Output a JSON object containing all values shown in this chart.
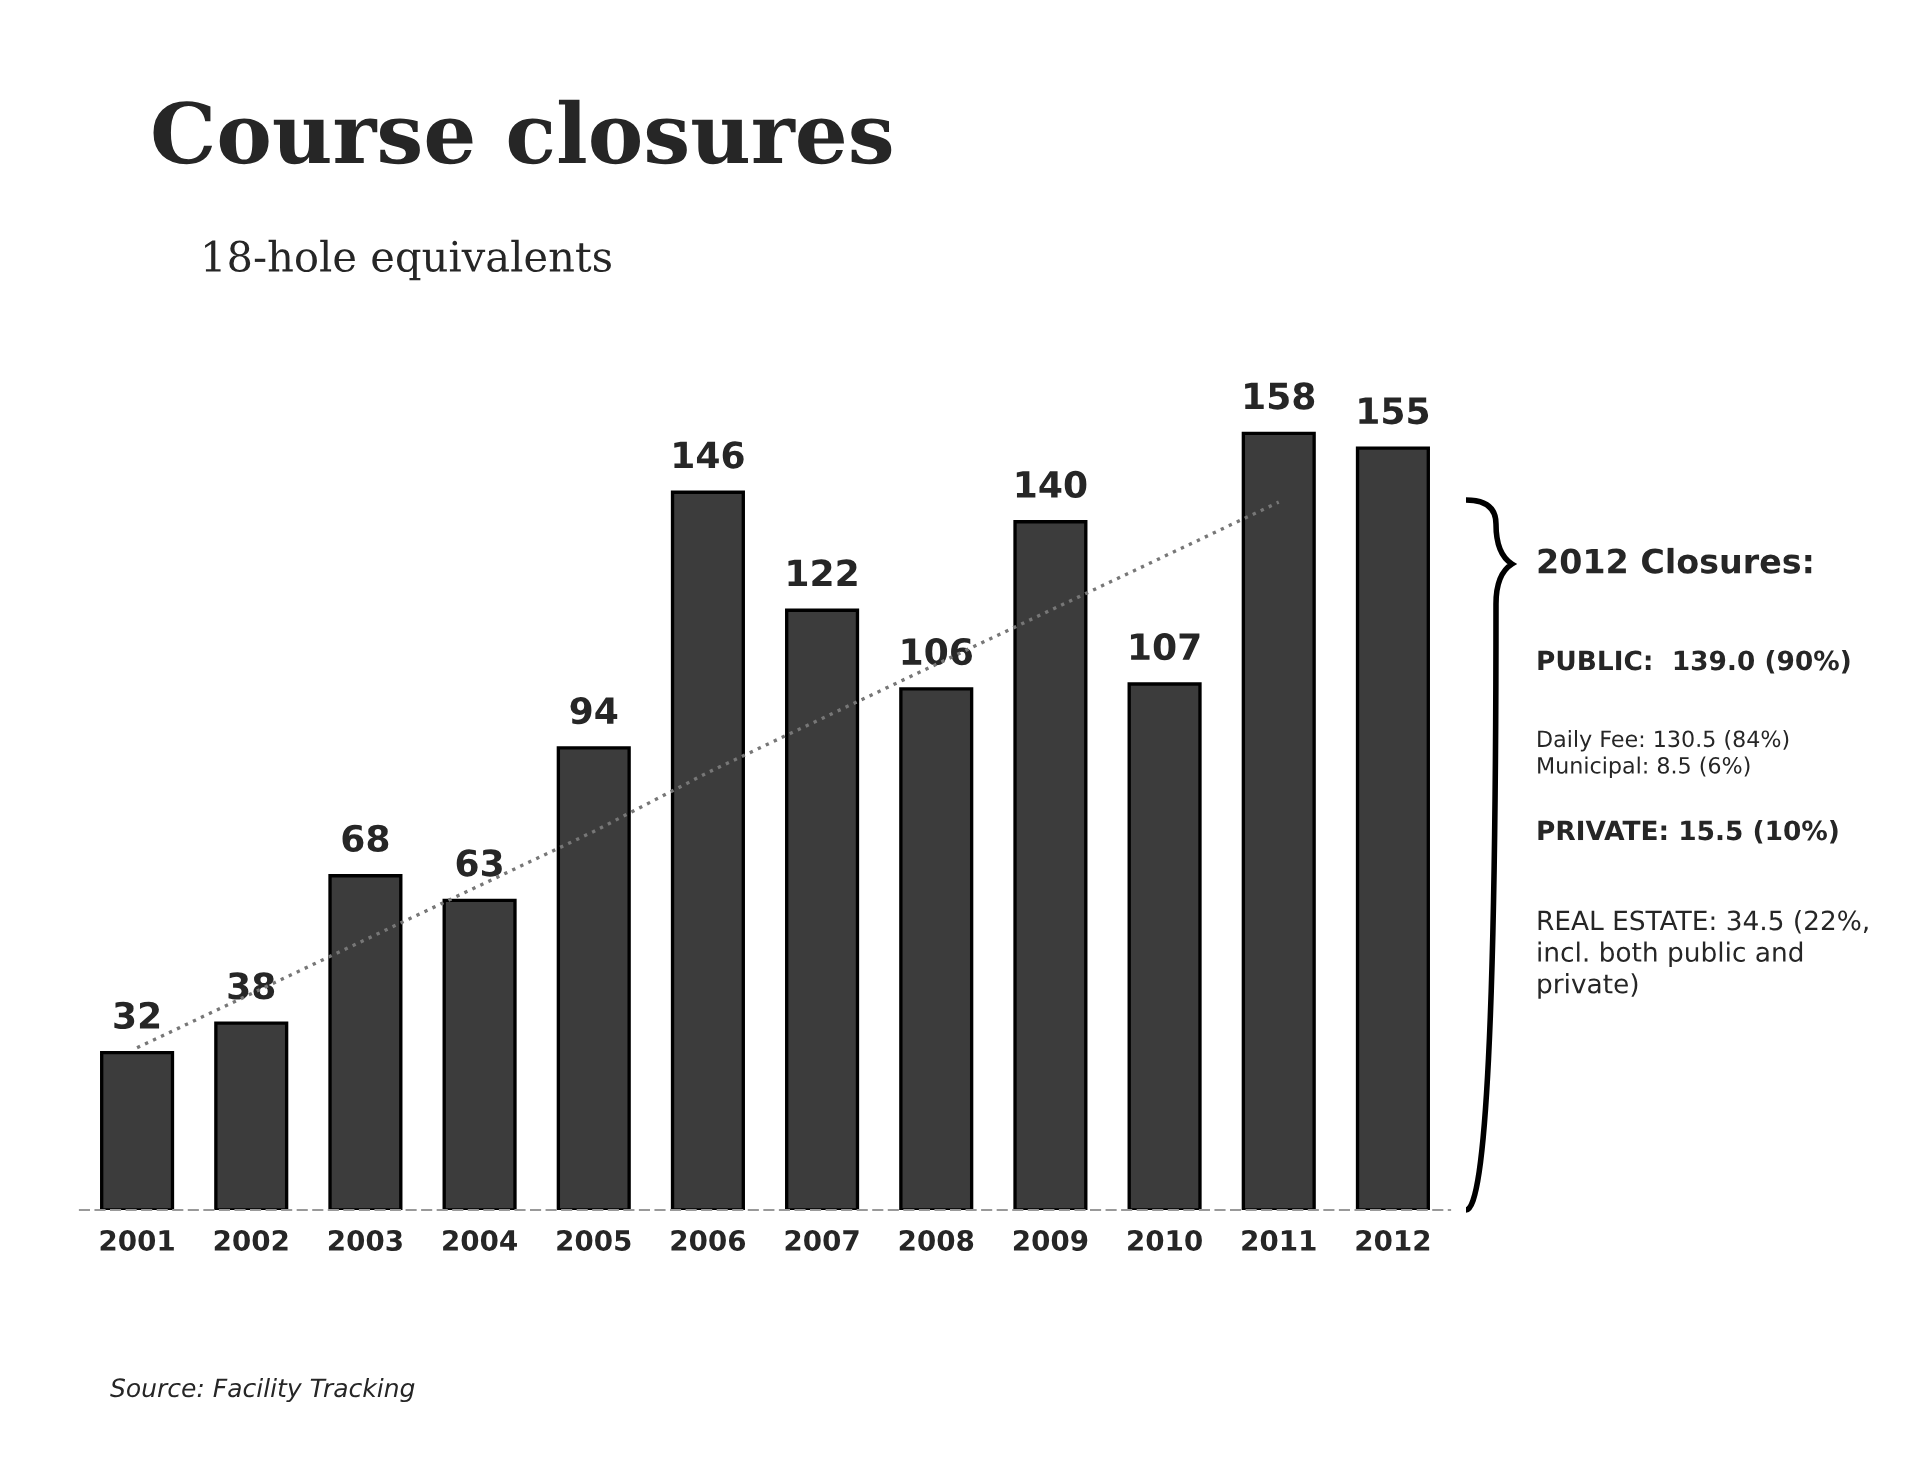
{
  "chart_data": {
    "type": "bar",
    "title": "Course closures",
    "subtitle": "18-hole equivalents",
    "categories": [
      "2001",
      "2002",
      "2003",
      "2004",
      "2005",
      "2006",
      "2007",
      "2008",
      "2009",
      "2010",
      "2011",
      "2012"
    ],
    "series": [
      {
        "color": "#3c3c3c",
        "values": [
          32,
          38,
          68,
          63,
          94,
          146,
          122,
          106,
          140,
          107,
          158,
          155
        ],
        "value_labels": [
          "32",
          "38",
          "68",
          "63",
          "94",
          "146",
          "122",
          "106",
          "140",
          "107",
          "158",
          "155"
        ]
      },
      {
        "type": "line",
        "color": "#777777",
        "line_style": "dotted",
        "values": [
          33,
          44,
          55,
          66,
          77,
          89,
          100,
          111,
          122,
          133,
          144,
          null
        ]
      }
    ],
    "grid": false,
    "legend": false,
    "annotations": [
      "2012 Closures:",
      "PUBLIC:  139.0 (90%)",
      "Daily Fee: 130.5 (84%)\nMunicipal: 8.5 (6%)",
      "PRIVATE: 15.5 (10%)",
      "REAL ESTATE: 34.5 (22%,\nincl. both public and\nprivate)",
      "Source: Facility Tracking"
    ]
  }
}
